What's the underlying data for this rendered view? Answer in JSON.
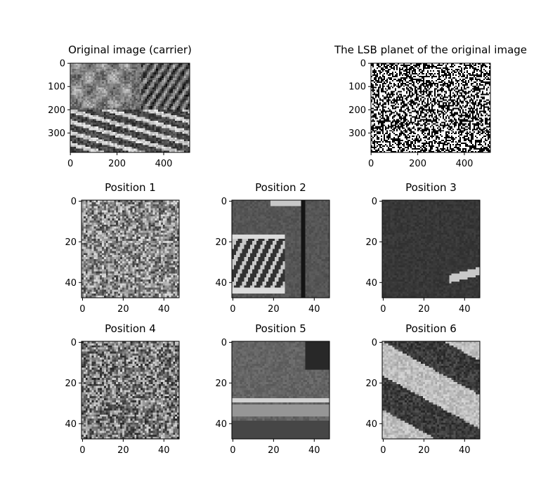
{
  "chart_data": [
    {
      "id": "carrier",
      "type": "image",
      "title": "Original image (carrier)",
      "xlim": [
        0,
        512
      ],
      "ylim": [
        384,
        0
      ],
      "xticks": [
        0,
        200,
        400
      ],
      "yticks": [
        0,
        100,
        200,
        300
      ]
    },
    {
      "id": "lsb",
      "type": "image",
      "title": "The LSB planet of the original image",
      "xlim": [
        0,
        512
      ],
      "ylim": [
        384,
        0
      ],
      "xticks": [
        0,
        200,
        400
      ],
      "yticks": [
        0,
        100,
        200,
        300
      ]
    },
    {
      "id": "pos1",
      "type": "image",
      "title": "Position 1",
      "xlim": [
        0,
        48
      ],
      "ylim": [
        48,
        0
      ],
      "xticks": [
        0,
        20,
        40
      ],
      "yticks": [
        0,
        20,
        40
      ]
    },
    {
      "id": "pos2",
      "type": "image",
      "title": "Position 2",
      "xlim": [
        0,
        48
      ],
      "ylim": [
        48,
        0
      ],
      "xticks": [
        0,
        20,
        40
      ],
      "yticks": [
        0,
        20,
        40
      ]
    },
    {
      "id": "pos3",
      "type": "image",
      "title": "Position 3",
      "xlim": [
        0,
        48
      ],
      "ylim": [
        48,
        0
      ],
      "xticks": [
        0,
        20,
        40
      ],
      "yticks": [
        0,
        20,
        40
      ]
    },
    {
      "id": "pos4",
      "type": "image",
      "title": "Position 4",
      "xlim": [
        0,
        48
      ],
      "ylim": [
        48,
        0
      ],
      "xticks": [
        0,
        20,
        40
      ],
      "yticks": [
        0,
        20,
        40
      ]
    },
    {
      "id": "pos5",
      "type": "image",
      "title": "Position 5",
      "xlim": [
        0,
        48
      ],
      "ylim": [
        48,
        0
      ],
      "xticks": [
        0,
        20,
        40
      ],
      "yticks": [
        0,
        20,
        40
      ]
    },
    {
      "id": "pos6",
      "type": "image",
      "title": "Position 6",
      "xlim": [
        0,
        48
      ],
      "ylim": [
        48,
        0
      ],
      "xticks": [
        0,
        20,
        40
      ],
      "yticks": [
        0,
        20,
        40
      ]
    }
  ],
  "colors": {
    "axis": "#000000",
    "background": "#ffffff"
  }
}
